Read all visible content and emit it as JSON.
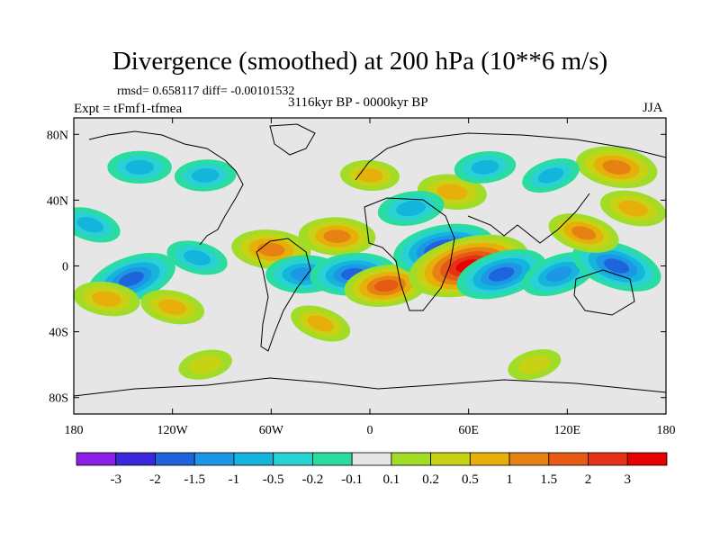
{
  "chart_data": {
    "type": "heatmap",
    "title": "Divergence (smoothed) at 200 hPa (10**6 m/s)",
    "stats_line": "rmsd= 0.658117 diff= -0.00101532",
    "experiment": "Expt = tFmf1-tfmea",
    "period": "3116kyr BP - 0000kyr BP",
    "season": "JJA",
    "x_range": [
      -180,
      180
    ],
    "y_range": [
      -90,
      90
    ],
    "x_ticks": [
      {
        "value": -180,
        "label": "180"
      },
      {
        "value": -120,
        "label": "120W"
      },
      {
        "value": -60,
        "label": "60W"
      },
      {
        "value": 0,
        "label": "0"
      },
      {
        "value": 60,
        "label": "60E"
      },
      {
        "value": 120,
        "label": "120E"
      },
      {
        "value": 180,
        "label": "180"
      }
    ],
    "y_ticks": [
      {
        "value": 80,
        "label": "80N"
      },
      {
        "value": 40,
        "label": "40N"
      },
      {
        "value": 0,
        "label": "0"
      },
      {
        "value": -40,
        "label": "40S"
      },
      {
        "value": -80,
        "label": "80S"
      }
    ],
    "colorbar": {
      "labels": [
        "-3",
        "-2",
        "-1.5",
        "-1",
        "-0.5",
        "-0.2",
        "-0.1",
        "0.1",
        "0.2",
        "0.5",
        "1",
        "1.5",
        "2",
        "3"
      ],
      "colors": [
        "#8c1ee6",
        "#3c28dc",
        "#1e64dc",
        "#1e96e6",
        "#14b4dc",
        "#28d2d2",
        "#2adca0",
        "#e6e6e6",
        "#a0dc28",
        "#c8d214",
        "#e6af0a",
        "#e68214",
        "#e65a14",
        "#e63214",
        "#e60000"
      ]
    },
    "features": [
      {
        "lon": -145,
        "lat": -8,
        "value": -1.8
      },
      {
        "lon": -170,
        "lat": 25,
        "value": -0.6
      },
      {
        "lon": -105,
        "lat": 5,
        "value": -0.6
      },
      {
        "lon": -120,
        "lat": -25,
        "value": 0.7
      },
      {
        "lon": -160,
        "lat": -20,
        "value": 0.8
      },
      {
        "lon": -60,
        "lat": 10,
        "value": 1.3
      },
      {
        "lon": -20,
        "lat": 18,
        "value": 1.2
      },
      {
        "lon": -40,
        "lat": -5,
        "value": -1.2
      },
      {
        "lon": -10,
        "lat": -5,
        "value": -1.6
      },
      {
        "lon": 10,
        "lat": -12,
        "value": 1.5
      },
      {
        "lon": 45,
        "lat": 10,
        "value": -2.2
      },
      {
        "lon": 60,
        "lat": 0,
        "value": 3.0
      },
      {
        "lon": 80,
        "lat": -5,
        "value": -1.8
      },
      {
        "lon": 115,
        "lat": -5,
        "value": -1.2
      },
      {
        "lon": 150,
        "lat": 0,
        "value": -1.8
      },
      {
        "lon": 130,
        "lat": 20,
        "value": 1.0
      },
      {
        "lon": 160,
        "lat": 35,
        "value": 0.8
      },
      {
        "lon": 150,
        "lat": 60,
        "value": 1.4
      },
      {
        "lon": 50,
        "lat": 45,
        "value": 0.9
      },
      {
        "lon": 0,
        "lat": 55,
        "value": 0.5
      },
      {
        "lon": -140,
        "lat": 60,
        "value": -0.7
      },
      {
        "lon": -100,
        "lat": 55,
        "value": -0.6
      },
      {
        "lon": 70,
        "lat": 60,
        "value": -0.6
      },
      {
        "lon": 25,
        "lat": 35,
        "value": -0.8
      },
      {
        "lon": -100,
        "lat": -60,
        "value": 0.3
      },
      {
        "lon": 100,
        "lat": -60,
        "value": 0.3
      },
      {
        "lon": 110,
        "lat": 55,
        "value": -0.5
      },
      {
        "lon": -30,
        "lat": -35,
        "value": 0.6
      }
    ]
  }
}
